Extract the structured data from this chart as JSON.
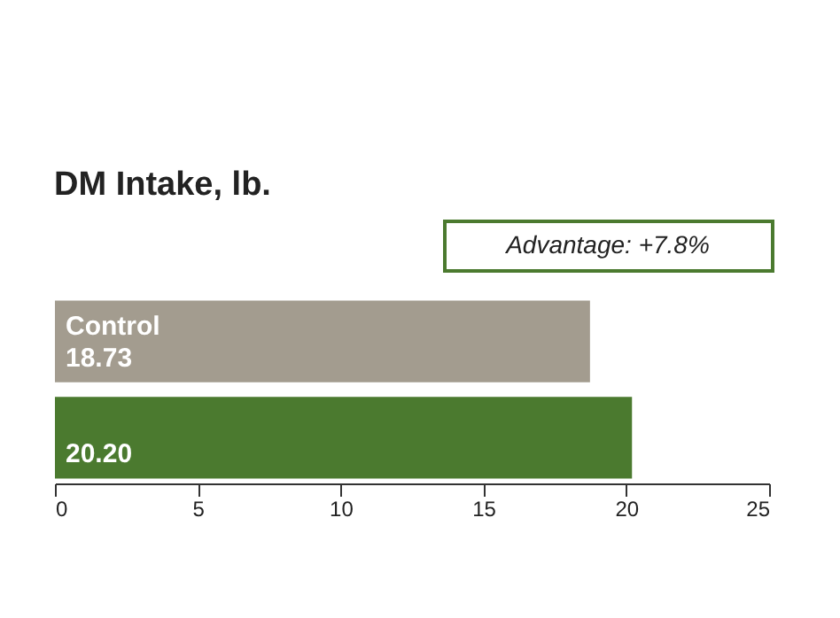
{
  "chart_data": {
    "type": "bar",
    "orientation": "horizontal",
    "title": "DM Intake, lb.",
    "categories": [
      "Control",
      null
    ],
    "values": [
      18.73,
      20.2
    ],
    "value_labels": [
      "18.73",
      "20.20"
    ],
    "colors": [
      "#a39c8f",
      "#4b7a2f"
    ],
    "xlim": [
      0,
      25
    ],
    "xticks": [
      0,
      5,
      10,
      15,
      20,
      25
    ],
    "grid": false,
    "annotations": [
      "Advantage: +7.8%"
    ]
  }
}
